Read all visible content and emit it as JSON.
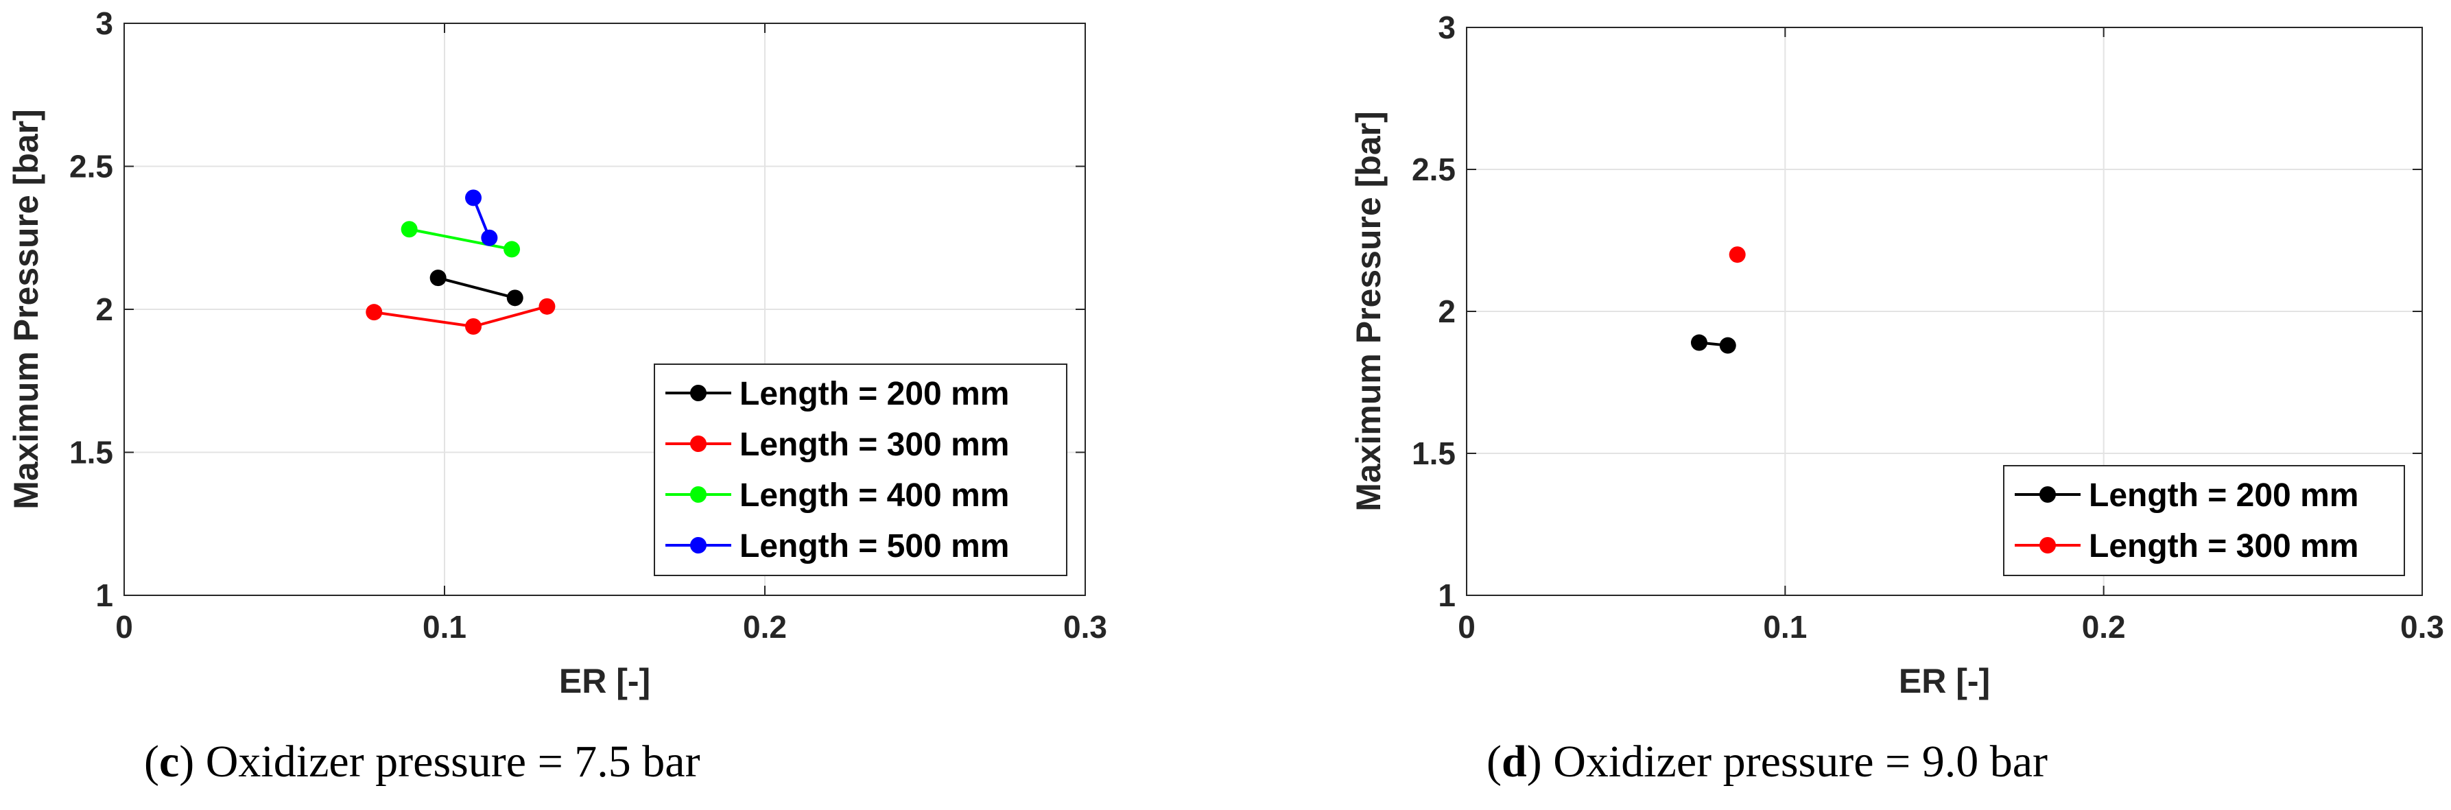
{
  "chart_data": [
    {
      "type": "line",
      "caption": {
        "letter": "c",
        "text": "Oxidizer pressure = 7.5 bar"
      },
      "xlabel": "ER [-]",
      "ylabel": "Maximum Pressure [bar]",
      "xlim": [
        0,
        0.3
      ],
      "ylim": [
        1,
        3
      ],
      "xticks": [
        0,
        0.1,
        0.2,
        0.3
      ],
      "xtick_labels": [
        "0",
        "0.1",
        "0.2",
        "0.3"
      ],
      "yticks": [
        1,
        1.5,
        2,
        2.5,
        3
      ],
      "ytick_labels": [
        "1",
        "1.5",
        "2",
        "2.5",
        "3"
      ],
      "grid": true,
      "legend_position": "bottom-right",
      "series": [
        {
          "name": "Length = 200 mm",
          "color": "#000000",
          "x": [
            0.098,
            0.122
          ],
          "y": [
            2.11,
            2.04
          ]
        },
        {
          "name": "Length = 300 mm",
          "color": "#ff0000",
          "x": [
            0.078,
            0.109,
            0.132
          ],
          "y": [
            1.99,
            1.94,
            2.01
          ]
        },
        {
          "name": "Length = 400 mm",
          "color": "#00ff00",
          "x": [
            0.089,
            0.121
          ],
          "y": [
            2.28,
            2.21
          ]
        },
        {
          "name": "Length = 500 mm",
          "color": "#0000ff",
          "x": [
            0.109,
            0.114
          ],
          "y": [
            2.39,
            2.25
          ]
        }
      ]
    },
    {
      "type": "line",
      "caption": {
        "letter": "d",
        "text": "Oxidizer pressure = 9.0 bar"
      },
      "xlabel": "ER [-]",
      "ylabel": "Maximum Pressure [bar]",
      "xlim": [
        0,
        0.3
      ],
      "ylim": [
        1,
        3
      ],
      "xticks": [
        0,
        0.1,
        0.2,
        0.3
      ],
      "xtick_labels": [
        "0",
        "0.1",
        "0.2",
        "0.3"
      ],
      "yticks": [
        1,
        1.5,
        2,
        2.5,
        3
      ],
      "ytick_labels": [
        "1",
        "1.5",
        "2",
        "2.5",
        "3"
      ],
      "grid": true,
      "legend_position": "bottom-right",
      "series": [
        {
          "name": "Length = 200 mm",
          "color": "#000000",
          "x": [
            0.073,
            0.082
          ],
          "y": [
            1.89,
            1.88
          ]
        },
        {
          "name": "Length = 300 mm",
          "color": "#ff0000",
          "x": [
            0.085
          ],
          "y": [
            2.2
          ]
        }
      ]
    }
  ]
}
